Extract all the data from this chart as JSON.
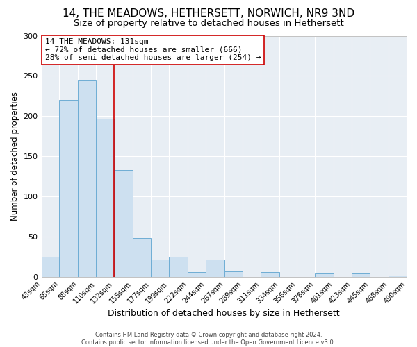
{
  "title": "14, THE MEADOWS, HETHERSETT, NORWICH, NR9 3ND",
  "subtitle": "Size of property relative to detached houses in Hethersett",
  "xlabel": "Distribution of detached houses by size in Hethersett",
  "ylabel": "Number of detached properties",
  "bin_edges": [
    43,
    65,
    88,
    110,
    132,
    155,
    177,
    199,
    222,
    244,
    267,
    289,
    311,
    334,
    356,
    378,
    401,
    423,
    445,
    468,
    490
  ],
  "bar_heights": [
    25,
    220,
    245,
    197,
    133,
    48,
    22,
    25,
    6,
    22,
    7,
    0,
    6,
    0,
    0,
    4,
    0,
    4,
    0,
    2
  ],
  "bar_color": "#cde0f0",
  "bar_edge_color": "#6eadd4",
  "vline_x": 132,
  "vline_color": "#cc0000",
  "ylim": [
    0,
    300
  ],
  "annotation_title": "14 THE MEADOWS: 131sqm",
  "annotation_line1": "← 72% of detached houses are smaller (666)",
  "annotation_line2": "28% of semi-detached houses are larger (254) →",
  "annotation_box_color": "#cc0000",
  "footer_line1": "Contains HM Land Registry data © Crown copyright and database right 2024.",
  "footer_line2": "Contains public sector information licensed under the Open Government Licence v3.0.",
  "tick_labels": [
    "43sqm",
    "65sqm",
    "88sqm",
    "110sqm",
    "132sqm",
    "155sqm",
    "177sqm",
    "199sqm",
    "222sqm",
    "244sqm",
    "267sqm",
    "289sqm",
    "311sqm",
    "334sqm",
    "356sqm",
    "378sqm",
    "401sqm",
    "423sqm",
    "445sqm",
    "468sqm",
    "490sqm"
  ],
  "background_color": "#ffffff",
  "plot_bg_color": "#e8eef4",
  "grid_color": "#ffffff",
  "title_fontsize": 11,
  "subtitle_fontsize": 9.5,
  "xlabel_fontsize": 9,
  "ylabel_fontsize": 8.5,
  "tick_fontsize": 7,
  "annotation_fontsize": 8,
  "footer_fontsize": 6
}
